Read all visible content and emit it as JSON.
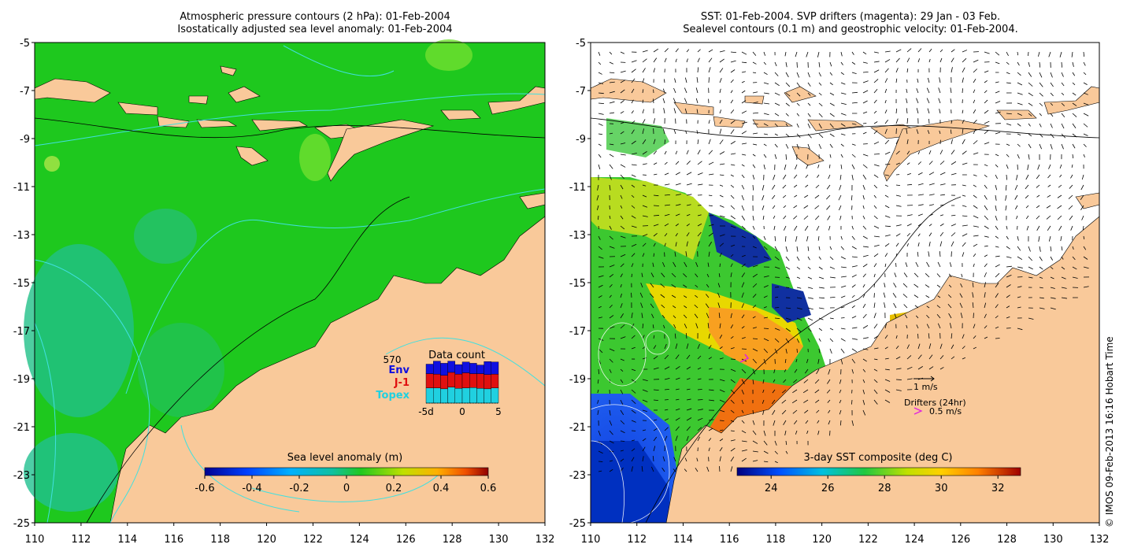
{
  "left_panel": {
    "title_line1": "Atmospheric pressure contours (2 hPa): 01-Feb-2004",
    "title_line2": "Isostatically adjusted sea level anomaly: 01-Feb-2004",
    "colorbar_label": "Sea level anomaly (m)",
    "colorbar_ticks": [
      "-0.6",
      "-0.4",
      "-0.2",
      "0",
      "0.2",
      "0.4",
      "0.6"
    ],
    "inset": {
      "title": "Data count",
      "total": "570",
      "legend": [
        {
          "label": "Env",
          "color": "#1010e0"
        },
        {
          "label": "J-1",
          "color": "#e01010"
        },
        {
          "label": "Topex",
          "color": "#20d0e0"
        }
      ],
      "xticks": [
        "-5d",
        "0",
        "5"
      ],
      "bars_topex": [
        0.35,
        0.35,
        0.33,
        0.37,
        0.34,
        0.35,
        0.36,
        0.34,
        0.33,
        0.35
      ],
      "bars_j1": [
        0.33,
        0.32,
        0.31,
        0.34,
        0.33,
        0.35,
        0.32,
        0.34,
        0.33,
        0.32
      ],
      "bars_env": [
        0.22,
        0.3,
        0.28,
        0.26,
        0.22,
        0.25,
        0.24,
        0.2,
        0.3,
        0.28
      ]
    }
  },
  "right_panel": {
    "title_line1": "SST: 01-Feb-2004. SVP drifters (magenta): 29 Jan - 03 Feb.",
    "title_line2": "Sealevel contours (0.1 m) and geostrophic velocity: 01-Feb-2004.",
    "colorbar_label": "3-day SST composite (deg C)",
    "colorbar_ticks": [
      "24",
      "26",
      "28",
      "30",
      "32"
    ],
    "velocity_legend": "1 m/s",
    "drifter_legend_title": "Drifters (24hr)",
    "drifter_legend_value": "0.5 m/s"
  },
  "axes": {
    "lon_ticks": [
      "110",
      "112",
      "114",
      "116",
      "118",
      "120",
      "122",
      "124",
      "126",
      "128",
      "130",
      "132"
    ],
    "lat_ticks": [
      "-5",
      "-7",
      "-9",
      "-11",
      "-13",
      "-15",
      "-17",
      "-19",
      "-21",
      "-23",
      "-25"
    ]
  },
  "credit": "© IMOS 09-Feb-2013 16:16 Hobart Time",
  "colors": {
    "land": "#f9c99a",
    "sea_green": "#1ec81e",
    "contour_cyan": "#40e0e0"
  }
}
